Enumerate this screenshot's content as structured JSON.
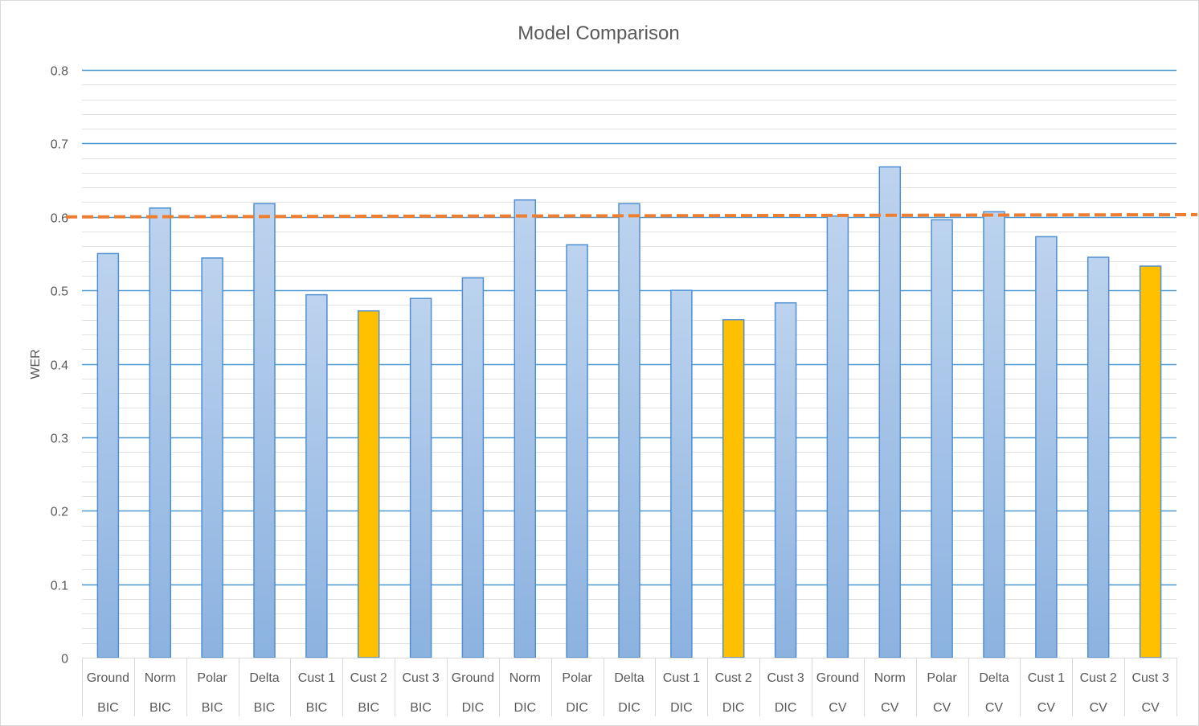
{
  "chart_data": {
    "type": "bar",
    "title": "Model Comparison",
    "xlabel": "",
    "ylabel": "WER",
    "ylim": [
      0,
      0.8
    ],
    "yticks": [
      "0",
      "0.1",
      "0.2",
      "0.3",
      "0.4",
      "0.5",
      "0.6",
      "0.7",
      "0.8"
    ],
    "major_grid": true,
    "minor_grid": true,
    "categories": [
      {
        "label": "Ground",
        "group": "BIC"
      },
      {
        "label": "Norm",
        "group": "BIC"
      },
      {
        "label": "Polar",
        "group": "BIC"
      },
      {
        "label": "Delta",
        "group": "BIC"
      },
      {
        "label": "Cust 1",
        "group": "BIC"
      },
      {
        "label": "Cust 2",
        "group": "BIC"
      },
      {
        "label": "Cust 3",
        "group": "BIC"
      },
      {
        "label": "Ground",
        "group": "DIC"
      },
      {
        "label": "Norm",
        "group": "DIC"
      },
      {
        "label": "Polar",
        "group": "DIC"
      },
      {
        "label": "Delta",
        "group": "DIC"
      },
      {
        "label": "Cust 1",
        "group": "DIC"
      },
      {
        "label": "Cust 2",
        "group": "DIC"
      },
      {
        "label": "Cust 3",
        "group": "DIC"
      },
      {
        "label": "Ground",
        "group": "CV"
      },
      {
        "label": "Norm",
        "group": "CV"
      },
      {
        "label": "Polar",
        "group": "CV"
      },
      {
        "label": "Delta",
        "group": "CV"
      },
      {
        "label": "Cust 1",
        "group": "CV"
      },
      {
        "label": "Cust 2",
        "group": "CV"
      },
      {
        "label": "Cust 3",
        "group": "CV"
      }
    ],
    "values": [
      0.55,
      0.612,
      0.544,
      0.618,
      0.494,
      0.472,
      0.489,
      0.517,
      0.623,
      0.562,
      0.618,
      0.5,
      0.46,
      0.483,
      0.601,
      0.668,
      0.596,
      0.607,
      0.573,
      0.545,
      0.533
    ],
    "highlighted": [
      5,
      12,
      20
    ],
    "reference_line": {
      "y_start": 0.6,
      "y_end": 0.603,
      "style": "dashed"
    },
    "colors": {
      "bar_top": "#bdd3ee",
      "bar_bottom": "#8cb2e0",
      "bar_stroke": "#4f8fd1",
      "highlight_fill": "#ffc000",
      "highlight_stroke": "#4f8fd1",
      "major_grid": "#4f97cf",
      "minor_grid": "#e2e2e2",
      "reference_line": "#ed7d31",
      "text": "#595959"
    }
  }
}
